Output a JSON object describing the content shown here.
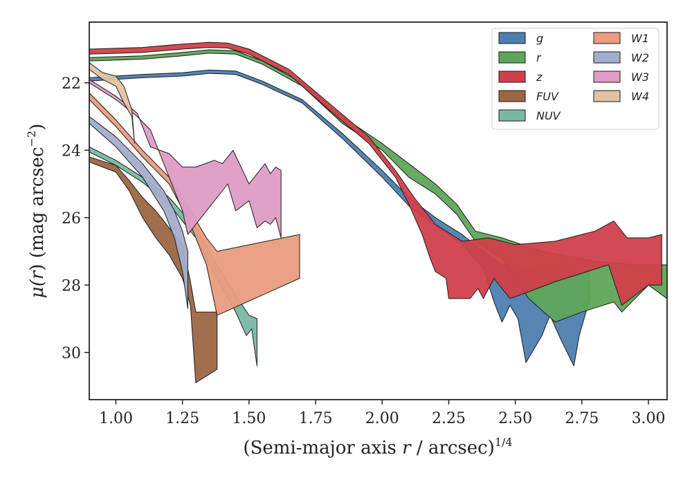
{
  "chart_data": {
    "type": "area",
    "title": "",
    "xlabel": "(Semi-major axis r / arcsec)1/4",
    "xlabel_parts": {
      "pre": "(Semi-major axis ",
      "var": "r",
      "post": " / arcsec)",
      "sup": "1/4"
    },
    "ylabel": "μ(r) (mag arcsec−2)",
    "ylabel_parts": {
      "mu": "μ(",
      "var": "r",
      "mid": ") (mag arcsec",
      "sup": "−2",
      "close": ")"
    },
    "xlim": [
      0.9,
      3.07
    ],
    "ylim": [
      31.4,
      20.2
    ],
    "y_inverted": true,
    "xticks": [
      1.0,
      1.25,
      1.5,
      1.75,
      2.0,
      2.25,
      2.5,
      2.75,
      3.0
    ],
    "xtick_labels": [
      "1.00",
      "1.25",
      "1.50",
      "1.75",
      "2.00",
      "2.25",
      "2.50",
      "2.75",
      "3.00"
    ],
    "yticks": [
      22,
      24,
      26,
      28,
      30
    ],
    "ytick_labels": [
      "22",
      "24",
      "26",
      "28",
      "30"
    ],
    "grid": false,
    "legend_position": "top-right",
    "legend_columns": 2,
    "series": [
      {
        "name": "g",
        "color": "#4c7fb0",
        "upper": [
          [
            0.9,
            21.85
          ],
          [
            1.1,
            21.75
          ],
          [
            1.25,
            21.7
          ],
          [
            1.35,
            21.62
          ],
          [
            1.45,
            21.65
          ],
          [
            1.55,
            21.95
          ],
          [
            1.7,
            22.5
          ],
          [
            1.85,
            23.5
          ],
          [
            2.0,
            24.6
          ],
          [
            2.1,
            25.4
          ],
          [
            2.2,
            26.0
          ],
          [
            2.3,
            26.5
          ],
          [
            2.38,
            27.0
          ],
          [
            2.45,
            27.4
          ],
          [
            2.55,
            27.5
          ],
          [
            2.65,
            27.6
          ],
          [
            2.78,
            27.6
          ]
        ],
        "lower": [
          [
            0.9,
            21.95
          ],
          [
            1.1,
            21.85
          ],
          [
            1.25,
            21.8
          ],
          [
            1.35,
            21.72
          ],
          [
            1.45,
            21.75
          ],
          [
            1.55,
            22.05
          ],
          [
            1.7,
            22.6
          ],
          [
            1.85,
            23.65
          ],
          [
            2.0,
            24.8
          ],
          [
            2.1,
            25.65
          ],
          [
            2.2,
            26.25
          ],
          [
            2.3,
            26.8
          ],
          [
            2.38,
            27.5
          ],
          [
            2.42,
            28.5
          ],
          [
            2.45,
            29.1
          ],
          [
            2.48,
            28.6
          ],
          [
            2.51,
            29.0
          ],
          [
            2.54,
            30.3
          ],
          [
            2.6,
            29.5
          ],
          [
            2.63,
            28.9
          ],
          [
            2.67,
            29.6
          ],
          [
            2.72,
            30.4
          ],
          [
            2.74,
            29.5
          ],
          [
            2.78,
            28.4
          ]
        ]
      },
      {
        "name": "r",
        "color": "#5fa55a",
        "upper": [
          [
            0.9,
            21.25
          ],
          [
            1.1,
            21.2
          ],
          [
            1.25,
            21.1
          ],
          [
            1.35,
            21.02
          ],
          [
            1.45,
            21.05
          ],
          [
            1.55,
            21.35
          ],
          [
            1.7,
            22.0
          ],
          [
            1.85,
            23.0
          ],
          [
            2.0,
            23.8
          ],
          [
            2.1,
            24.4
          ],
          [
            2.2,
            25.0
          ],
          [
            2.28,
            25.6
          ],
          [
            2.35,
            26.4
          ],
          [
            2.45,
            26.6
          ],
          [
            2.6,
            27.0
          ],
          [
            2.8,
            27.3
          ],
          [
            2.95,
            27.4
          ],
          [
            3.07,
            27.4
          ]
        ],
        "lower": [
          [
            0.9,
            21.35
          ],
          [
            1.1,
            21.3
          ],
          [
            1.25,
            21.2
          ],
          [
            1.35,
            21.12
          ],
          [
            1.45,
            21.15
          ],
          [
            1.55,
            21.45
          ],
          [
            1.7,
            22.1
          ],
          [
            1.85,
            23.2
          ],
          [
            2.0,
            24.0
          ],
          [
            2.1,
            24.8
          ],
          [
            2.2,
            25.3
          ],
          [
            2.28,
            25.9
          ],
          [
            2.35,
            26.7
          ],
          [
            2.45,
            27.2
          ],
          [
            2.55,
            28.4
          ],
          [
            2.65,
            29.1
          ],
          [
            2.75,
            28.8
          ],
          [
            2.87,
            28.5
          ],
          [
            2.9,
            28.8
          ],
          [
            2.95,
            28.4
          ],
          [
            3.0,
            28.0
          ],
          [
            3.07,
            28.4
          ]
        ]
      },
      {
        "name": "z",
        "color": "#d0404a",
        "upper": [
          [
            0.9,
            21.0
          ],
          [
            1.1,
            20.95
          ],
          [
            1.25,
            20.85
          ],
          [
            1.35,
            20.8
          ],
          [
            1.42,
            20.82
          ],
          [
            1.5,
            21.0
          ],
          [
            1.65,
            21.6
          ],
          [
            1.8,
            22.6
          ],
          [
            1.95,
            23.6
          ],
          [
            2.05,
            24.6
          ],
          [
            2.12,
            25.4
          ],
          [
            2.2,
            26.2
          ],
          [
            2.3,
            26.7
          ],
          [
            2.4,
            26.6
          ],
          [
            2.5,
            26.8
          ],
          [
            2.65,
            26.7
          ],
          [
            2.8,
            26.4
          ],
          [
            2.87,
            26.1
          ],
          [
            2.92,
            26.6
          ],
          [
            3.0,
            26.6
          ],
          [
            3.05,
            26.5
          ]
        ],
        "lower": [
          [
            0.9,
            21.15
          ],
          [
            1.1,
            21.1
          ],
          [
            1.25,
            21.0
          ],
          [
            1.35,
            20.95
          ],
          [
            1.42,
            20.97
          ],
          [
            1.5,
            21.15
          ],
          [
            1.65,
            21.75
          ],
          [
            1.8,
            22.8
          ],
          [
            1.95,
            23.8
          ],
          [
            2.05,
            24.8
          ],
          [
            2.1,
            25.6
          ],
          [
            2.15,
            26.5
          ],
          [
            2.18,
            27.2
          ],
          [
            2.2,
            27.6
          ],
          [
            2.24,
            27.8
          ],
          [
            2.25,
            28.4
          ],
          [
            2.33,
            28.4
          ],
          [
            2.36,
            28.1
          ],
          [
            2.38,
            28.4
          ],
          [
            2.42,
            27.8
          ],
          [
            2.48,
            28.4
          ],
          [
            2.55,
            28.2
          ],
          [
            2.65,
            27.9
          ],
          [
            2.85,
            27.4
          ],
          [
            2.9,
            28.6
          ],
          [
            2.95,
            28.3
          ],
          [
            3.0,
            28.0
          ],
          [
            3.05,
            28.0
          ]
        ]
      },
      {
        "name": "FUV",
        "color": "#9c6644",
        "upper": [
          [
            0.9,
            24.2
          ],
          [
            1.0,
            24.45
          ],
          [
            1.05,
            24.9
          ],
          [
            1.1,
            25.4
          ],
          [
            1.15,
            25.8
          ],
          [
            1.2,
            26.3
          ],
          [
            1.25,
            26.8
          ],
          [
            1.28,
            27.9
          ],
          [
            1.3,
            28.8
          ],
          [
            1.38,
            28.8
          ]
        ],
        "lower": [
          [
            0.9,
            24.35
          ],
          [
            1.0,
            24.65
          ],
          [
            1.05,
            25.2
          ],
          [
            1.1,
            26.0
          ],
          [
            1.15,
            26.6
          ],
          [
            1.2,
            27.1
          ],
          [
            1.25,
            27.8
          ],
          [
            1.28,
            28.6
          ],
          [
            1.3,
            30.9
          ],
          [
            1.38,
            30.5
          ]
        ]
      },
      {
        "name": "NUV",
        "color": "#7ab8a6",
        "upper": [
          [
            0.9,
            23.9
          ],
          [
            1.0,
            24.3
          ],
          [
            1.1,
            24.8
          ],
          [
            1.2,
            25.4
          ],
          [
            1.3,
            26.3
          ],
          [
            1.38,
            27.4
          ],
          [
            1.45,
            28.3
          ],
          [
            1.5,
            28.9
          ],
          [
            1.53,
            29.0
          ]
        ],
        "lower": [
          [
            0.9,
            24.05
          ],
          [
            1.0,
            24.45
          ],
          [
            1.1,
            24.95
          ],
          [
            1.2,
            25.6
          ],
          [
            1.3,
            26.6
          ],
          [
            1.38,
            27.8
          ],
          [
            1.45,
            28.8
          ],
          [
            1.49,
            29.5
          ],
          [
            1.51,
            29.3
          ],
          [
            1.53,
            30.4
          ]
        ]
      },
      {
        "name": "W1",
        "color": "#e99c7e",
        "upper": [
          [
            0.9,
            22.3
          ],
          [
            1.0,
            23.1
          ],
          [
            1.1,
            24.0
          ],
          [
            1.2,
            24.8
          ],
          [
            1.28,
            25.8
          ],
          [
            1.34,
            26.6
          ],
          [
            1.38,
            27.0
          ],
          [
            1.69,
            26.5
          ]
        ],
        "lower": [
          [
            0.9,
            22.5
          ],
          [
            1.0,
            23.3
          ],
          [
            1.1,
            24.2
          ],
          [
            1.2,
            25.0
          ],
          [
            1.28,
            26.2
          ],
          [
            1.34,
            27.4
          ],
          [
            1.38,
            28.9
          ],
          [
            1.69,
            27.8
          ]
        ]
      },
      {
        "name": "W2",
        "color": "#a3aecc",
        "upper": [
          [
            0.9,
            23.0
          ],
          [
            1.0,
            23.6
          ],
          [
            1.1,
            24.4
          ],
          [
            1.18,
            25.2
          ],
          [
            1.22,
            25.8
          ],
          [
            1.25,
            26.4
          ],
          [
            1.27,
            27.0
          ]
        ],
        "lower": [
          [
            0.9,
            23.2
          ],
          [
            1.0,
            23.9
          ],
          [
            1.1,
            24.8
          ],
          [
            1.18,
            25.8
          ],
          [
            1.22,
            26.6
          ],
          [
            1.25,
            27.6
          ],
          [
            1.27,
            28.7
          ]
        ]
      },
      {
        "name": "W3",
        "color": "#de9cc6",
        "upper": [
          [
            0.9,
            21.9
          ],
          [
            1.0,
            22.4
          ],
          [
            1.08,
            22.9
          ],
          [
            1.13,
            23.9
          ],
          [
            1.2,
            24.1
          ],
          [
            1.25,
            24.5
          ],
          [
            1.3,
            24.5
          ],
          [
            1.37,
            24.3
          ],
          [
            1.4,
            24.4
          ],
          [
            1.44,
            24.0
          ],
          [
            1.47,
            24.5
          ],
          [
            1.5,
            25.0
          ],
          [
            1.53,
            24.7
          ],
          [
            1.56,
            24.4
          ],
          [
            1.58,
            24.7
          ],
          [
            1.6,
            24.5
          ],
          [
            1.62,
            24.6
          ]
        ],
        "lower": [
          [
            0.9,
            22.0
          ],
          [
            1.0,
            22.5
          ],
          [
            1.08,
            23.0
          ],
          [
            1.13,
            23.4
          ],
          [
            1.2,
            24.8
          ],
          [
            1.25,
            25.8
          ],
          [
            1.27,
            26.5
          ],
          [
            1.33,
            25.9
          ],
          [
            1.38,
            25.4
          ],
          [
            1.42,
            25.0
          ],
          [
            1.45,
            25.8
          ],
          [
            1.5,
            25.5
          ],
          [
            1.53,
            26.3
          ],
          [
            1.56,
            26.1
          ],
          [
            1.58,
            26.2
          ],
          [
            1.6,
            26.0
          ],
          [
            1.62,
            26.6
          ]
        ]
      },
      {
        "name": "W4",
        "color": "#dfc3a2",
        "upper": [
          [
            0.9,
            21.4
          ],
          [
            0.95,
            21.7
          ],
          [
            1.0,
            21.8
          ],
          [
            1.03,
            22.1
          ],
          [
            1.06,
            22.8
          ],
          [
            1.07,
            23.8
          ]
        ],
        "lower": [
          [
            0.9,
            21.6
          ],
          [
            0.95,
            21.9
          ],
          [
            1.0,
            22.1
          ],
          [
            1.03,
            22.6
          ],
          [
            1.06,
            23.0
          ],
          [
            1.07,
            23.8
          ]
        ]
      }
    ]
  }
}
